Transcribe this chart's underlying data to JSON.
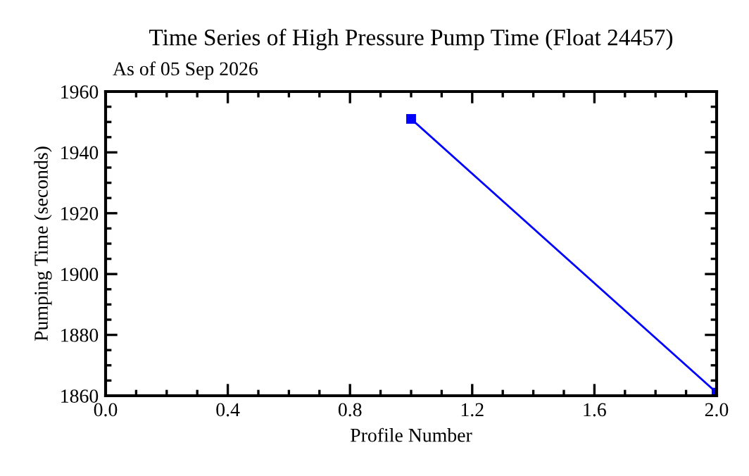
{
  "chart_data": {
    "type": "line",
    "title": "Time Series of High Pressure Pump Time (Float 24457)",
    "subtitle": "As of 05 Sep 2026",
    "xlabel": "Profile Number",
    "ylabel": "Pumping Time (seconds)",
    "series": [
      {
        "color": "#0000ff",
        "x": [
          1.0,
          2.0
        ],
        "values": [
          1951,
          1861
        ]
      }
    ],
    "xlim": [
      0.0,
      2.0
    ],
    "xticks": [
      {
        "value": 0,
        "label": "0.0"
      },
      0.4,
      0.8,
      1.2,
      1.6,
      {
        "value": 2,
        "label": "2.0"
      }
    ],
    "ylim": [
      1860,
      1960
    ],
    "yticks": [
      1860,
      1880,
      1900,
      1920,
      1940,
      1960
    ],
    "grid": false,
    "legend": false,
    "marker": "square",
    "line_style": "solid"
  }
}
